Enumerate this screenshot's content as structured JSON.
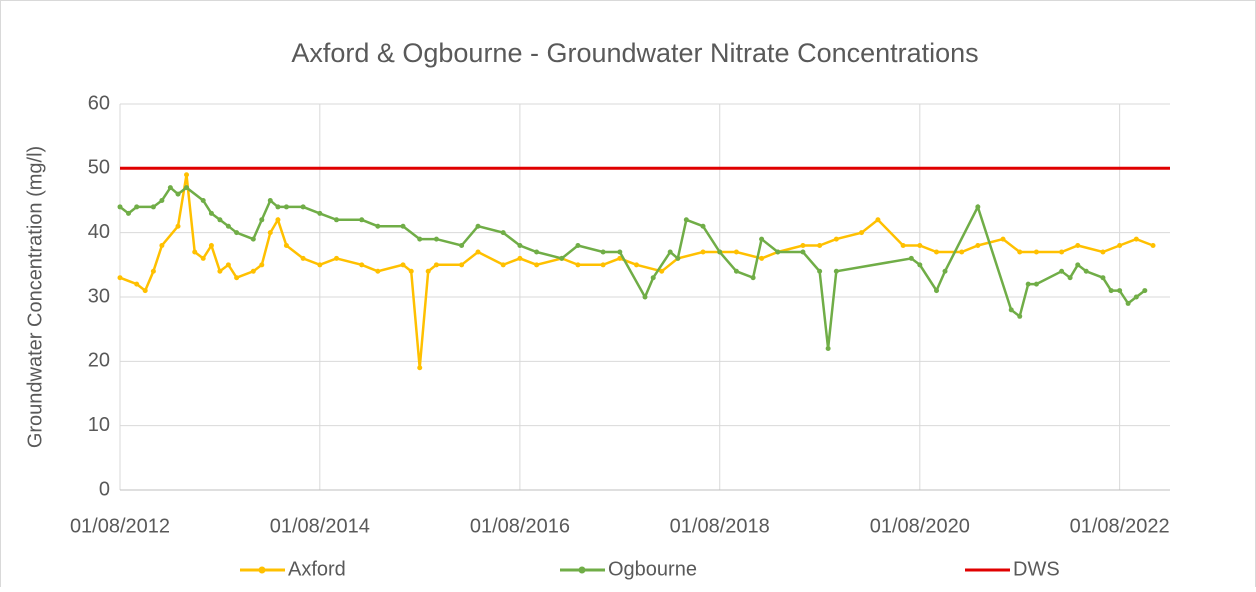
{
  "chart_data": {
    "type": "line",
    "title": "Axford & Ogbourne - Groundwater Nitrate Concentrations",
    "ylabel": "Groundwater Concentration (mg/l)",
    "xlim": [
      "01/08/2012",
      "01/02/2023"
    ],
    "xticks": [
      "01/08/2012",
      "01/08/2014",
      "01/08/2016",
      "01/08/2018",
      "01/08/2020",
      "01/08/2022"
    ],
    "ylim": [
      0,
      60
    ],
    "yticks": [
      0,
      10,
      20,
      30,
      40,
      50,
      60
    ],
    "grid": true,
    "legend": "bottom",
    "series": [
      {
        "name": "Axford",
        "color": "#ffc000",
        "marker": true,
        "x": [
          "01/08/2012",
          "01/10/2012",
          "01/11/2012",
          "01/12/2012",
          "01/01/2013",
          "01/03/2013",
          "01/04/2013",
          "01/05/2013",
          "01/06/2013",
          "01/07/2013",
          "01/08/2013",
          "01/09/2013",
          "01/10/2013",
          "01/12/2013",
          "01/01/2014",
          "01/02/2014",
          "01/03/2014",
          "01/04/2014",
          "01/06/2014",
          "01/08/2014",
          "01/10/2014",
          "01/01/2015",
          "01/03/2015",
          "01/06/2015",
          "01/07/2015",
          "01/08/2015",
          "01/09/2015",
          "01/10/2015",
          "01/01/2016",
          "01/03/2016",
          "01/06/2016",
          "01/08/2016",
          "01/10/2016",
          "01/01/2017",
          "01/03/2017",
          "01/06/2017",
          "01/08/2017",
          "01/10/2017",
          "01/01/2018",
          "01/03/2018",
          "01/06/2018",
          "01/08/2018",
          "01/10/2018",
          "01/01/2019",
          "01/03/2019",
          "01/06/2019",
          "01/08/2019",
          "01/10/2019",
          "01/01/2020",
          "01/03/2020",
          "01/06/2020",
          "01/08/2020",
          "01/10/2020",
          "01/01/2021",
          "01/03/2021",
          "01/06/2021",
          "01/08/2021",
          "01/10/2021",
          "01/01/2022",
          "01/03/2022",
          "01/06/2022",
          "01/08/2022",
          "01/10/2022",
          "01/12/2022"
        ],
        "values": [
          33,
          32,
          31,
          34,
          38,
          41,
          49,
          37,
          36,
          38,
          34,
          35,
          33,
          34,
          35,
          40,
          42,
          38,
          36,
          35,
          36,
          35,
          34,
          35,
          34,
          19,
          34,
          35,
          35,
          37,
          35,
          36,
          35,
          36,
          35,
          35,
          36,
          35,
          34,
          36,
          37,
          37,
          37,
          36,
          37,
          38,
          38,
          39,
          40,
          42,
          38,
          38,
          37,
          37,
          38,
          39,
          37,
          37,
          37,
          38,
          37,
          38,
          39,
          38
        ]
      },
      {
        "name": "Ogbourne",
        "color": "#70ad47",
        "marker": true,
        "x": [
          "01/08/2012",
          "01/09/2012",
          "01/10/2012",
          "01/12/2012",
          "01/01/2013",
          "01/02/2013",
          "01/03/2013",
          "01/04/2013",
          "01/06/2013",
          "01/07/2013",
          "01/08/2013",
          "01/09/2013",
          "01/10/2013",
          "01/12/2013",
          "01/01/2014",
          "01/02/2014",
          "01/03/2014",
          "01/04/2014",
          "01/06/2014",
          "01/08/2014",
          "01/10/2014",
          "01/01/2015",
          "01/03/2015",
          "01/06/2015",
          "01/08/2015",
          "01/10/2015",
          "01/01/2016",
          "01/03/2016",
          "01/06/2016",
          "01/08/2016",
          "01/10/2016",
          "01/01/2017",
          "01/03/2017",
          "01/06/2017",
          "01/08/2017",
          "01/11/2017",
          "01/12/2017",
          "01/02/2018",
          "01/03/2018",
          "01/04/2018",
          "01/06/2018",
          "01/08/2018",
          "01/10/2018",
          "01/12/2018",
          "01/01/2019",
          "01/03/2019",
          "01/06/2019",
          "01/08/2019",
          "01/09/2019",
          "01/10/2019",
          "01/07/2020",
          "01/08/2020",
          "01/10/2020",
          "01/11/2020",
          "01/03/2021",
          "01/07/2021",
          "01/08/2021",
          "01/09/2021",
          "01/10/2021",
          "01/01/2022",
          "01/02/2022",
          "01/03/2022",
          "01/04/2022",
          "01/06/2022",
          "01/07/2022",
          "01/08/2022",
          "01/09/2022",
          "01/10/2022",
          "01/11/2022"
        ],
        "values": [
          44,
          43,
          44,
          44,
          45,
          47,
          46,
          47,
          45,
          43,
          42,
          41,
          40,
          39,
          42,
          45,
          44,
          44,
          44,
          43,
          42,
          42,
          41,
          41,
          39,
          39,
          38,
          41,
          40,
          38,
          37,
          36,
          38,
          37,
          37,
          30,
          33,
          37,
          36,
          42,
          41,
          37,
          34,
          33,
          39,
          37,
          37,
          34,
          22,
          34,
          36,
          35,
          31,
          34,
          44,
          28,
          27,
          32,
          32,
          34,
          33,
          35,
          34,
          33,
          31,
          31,
          29,
          30,
          31
        ]
      },
      {
        "name": "DWS",
        "color": "#e00000",
        "marker": false,
        "x": [
          "01/08/2012",
          "01/02/2023"
        ],
        "values": [
          50,
          50
        ]
      }
    ]
  }
}
